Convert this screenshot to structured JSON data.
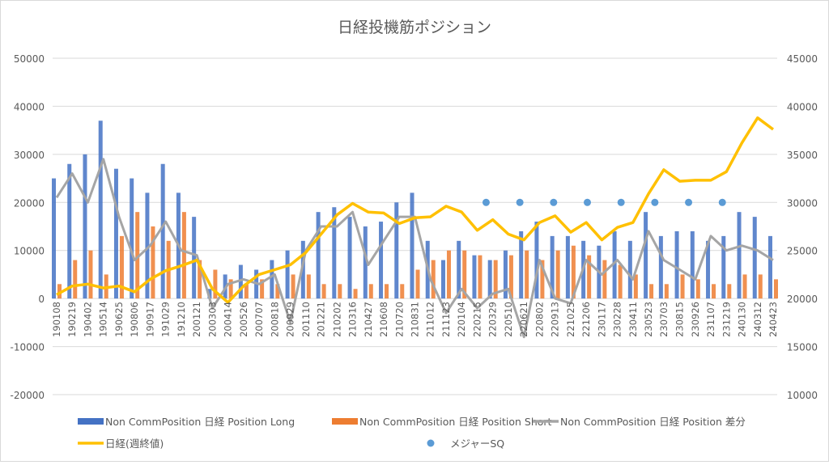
{
  "chart_data": {
    "type": "bar",
    "title": "日経投機筋ポジション",
    "y_left": {
      "min": -20000,
      "max": 50000,
      "step": 10000,
      "ticks": [
        "-20000",
        "-10000",
        "0",
        "10000",
        "20000",
        "30000",
        "40000",
        "50000"
      ]
    },
    "y_right": {
      "min": 10000,
      "max": 45000,
      "step": 5000,
      "ticks": [
        "10000",
        "15000",
        "20000",
        "25000",
        "30000",
        "35000",
        "40000",
        "45000"
      ]
    },
    "grid": true,
    "legend_position": "bottom",
    "categories": [
      "190108",
      "190219",
      "190402",
      "190514",
      "190625",
      "190806",
      "190917",
      "191029",
      "191210",
      "200121",
      "200303",
      "200414",
      "200526",
      "200707",
      "200818",
      "200929",
      "201110",
      "201221",
      "210202",
      "210316",
      "210427",
      "210608",
      "210720",
      "210831",
      "211012",
      "211123",
      "220104",
      "220215",
      "220329",
      "220510",
      "220621",
      "220802",
      "220913",
      "221025",
      "221206",
      "230117",
      "230228",
      "230411",
      "230523",
      "230703",
      "230815",
      "230926",
      "231107",
      "231219",
      "240130",
      "240312",
      "240423"
    ],
    "series": [
      {
        "name": "Non CommPosition 日経 Position Long",
        "type": "bar",
        "axis": "left",
        "color": "#4472C4",
        "values": [
          25000,
          28000,
          30000,
          37000,
          27000,
          25000,
          22000,
          28000,
          22000,
          17000,
          2000,
          5000,
          7000,
          6000,
          8000,
          10000,
          12000,
          18000,
          19000,
          17000,
          15000,
          16000,
          20000,
          22000,
          12000,
          8000,
          12000,
          9000,
          8000,
          10000,
          14000,
          16000,
          13000,
          13000,
          12000,
          11000,
          14000,
          12000,
          18000,
          13000,
          14000,
          14000,
          12000,
          13000,
          18000,
          17000,
          13000
        ]
      },
      {
        "name": "Non CommPosition 日経 Position Short",
        "type": "bar",
        "axis": "left",
        "color": "#ED7D31",
        "values": [
          3000,
          8000,
          10000,
          5000,
          13000,
          18000,
          15000,
          12000,
          18000,
          8000,
          6000,
          4000,
          3000,
          4000,
          3000,
          5000,
          5000,
          3000,
          3000,
          2000,
          3000,
          3000,
          3000,
          6000,
          8000,
          10000,
          10000,
          9000,
          8000,
          9000,
          10000,
          8000,
          10000,
          11000,
          9000,
          8000,
          7000,
          5000,
          3000,
          3000,
          5000,
          4000,
          3000,
          3000,
          5000,
          5000,
          4000
        ]
      },
      {
        "name": "Non CommPosition 日経 Position 差分",
        "type": "line",
        "axis": "left",
        "color": "#A5A5A5",
        "values": [
          21000,
          26000,
          20000,
          29000,
          17000,
          8000,
          11000,
          16000,
          10000,
          9000,
          -2000,
          3000,
          4000,
          3000,
          5000,
          -5000,
          10000,
          15000,
          15000,
          18000,
          7000,
          12000,
          17000,
          17000,
          4000,
          -3000,
          2000,
          -2000,
          1000,
          2000,
          -8000,
          8000,
          0,
          -1000,
          8000,
          5000,
          8000,
          4000,
          14000,
          8000,
          6000,
          4000,
          13000,
          10000,
          11000,
          10000,
          8000
        ]
      },
      {
        "name": "日経(週終値)",
        "type": "line",
        "axis": "right",
        "color": "#FFC000",
        "values": [
          20400,
          21300,
          21500,
          21100,
          21300,
          20700,
          22000,
          22900,
          23400,
          24000,
          21000,
          19600,
          21300,
          22500,
          23000,
          23500,
          24800,
          26700,
          28700,
          29900,
          29000,
          28900,
          27800,
          28400,
          28500,
          29600,
          29000,
          27100,
          28200,
          26700,
          26100,
          27900,
          28600,
          26900,
          27900,
          26100,
          27400,
          27900,
          30900,
          33400,
          32200,
          32300,
          32300,
          33200,
          36200,
          38800,
          37600
        ]
      },
      {
        "name": "メジャーSQ",
        "type": "scatter",
        "axis": "left",
        "color": "#5B9BD5",
        "points": [
          {
            "x": "220311",
            "y": 20000
          },
          {
            "x": "220610",
            "y": 20000
          },
          {
            "x": "220909",
            "y": 20000
          },
          {
            "x": "221209",
            "y": 20000
          },
          {
            "x": "230310",
            "y": 20000
          },
          {
            "x": "230609",
            "y": 20000
          },
          {
            "x": "230908",
            "y": 20000
          },
          {
            "x": "231208",
            "y": 20000
          }
        ]
      }
    ]
  }
}
